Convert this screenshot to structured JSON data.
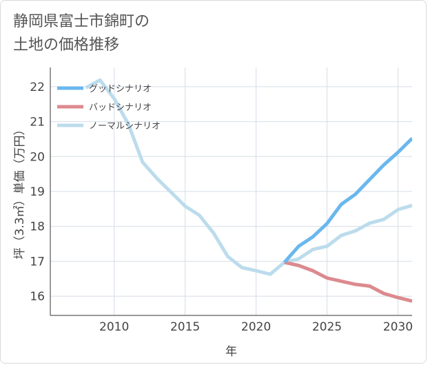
{
  "title_lines": [
    "静岡県富士市錦町の",
    "土地の価格推移"
  ],
  "colors": {
    "good": "#6ab7ee",
    "bad": "#dc8a8f",
    "normal": "#bcdcec",
    "grid": "#d5dee6",
    "axis": "#333333"
  },
  "chart_data": {
    "type": "line",
    "title": "静岡県富士市錦町の土地の価格推移",
    "xlabel": "年",
    "ylabel": "坪（3.3㎡）単価（万円）",
    "xlim": [
      2005.5,
      2031
    ],
    "ylim": [
      15.45,
      22.55
    ],
    "x_ticks": [
      2010,
      2015,
      2020,
      2025,
      2030
    ],
    "y_ticks": [
      16,
      17,
      18,
      19,
      20,
      21,
      22
    ],
    "legend_position": "top-left",
    "series": [
      {
        "name": "グッドシナリオ",
        "color_key": "good",
        "x": [
          2022,
          2023,
          2024,
          2025,
          2026,
          2027,
          2028,
          2029,
          2030,
          2031
        ],
        "values": [
          16.97,
          17.43,
          17.7,
          18.08,
          18.63,
          18.92,
          19.34,
          19.76,
          20.12,
          20.52
        ]
      },
      {
        "name": "バッドシナリオ",
        "color_key": "bad",
        "x": [
          2022,
          2023,
          2024,
          2025,
          2026,
          2027,
          2028,
          2029,
          2030,
          2031
        ],
        "values": [
          16.97,
          16.88,
          16.73,
          16.52,
          16.43,
          16.34,
          16.29,
          16.08,
          15.96,
          15.86
        ]
      },
      {
        "name": "ノーマルシナリオ",
        "color_key": "normal",
        "x": [
          2008,
          2009,
          2010,
          2011,
          2012,
          2013,
          2014,
          2015,
          2016,
          2017,
          2018,
          2019,
          2020,
          2021,
          2022,
          2023,
          2024,
          2025,
          2026,
          2027,
          2028,
          2029,
          2030,
          2031
        ],
        "values": [
          21.97,
          22.19,
          21.66,
          20.93,
          19.84,
          19.38,
          18.98,
          18.58,
          18.32,
          17.81,
          17.14,
          16.82,
          16.73,
          16.63,
          16.97,
          17.07,
          17.34,
          17.43,
          17.74,
          17.87,
          18.09,
          18.2,
          18.48,
          18.6
        ]
      }
    ]
  }
}
